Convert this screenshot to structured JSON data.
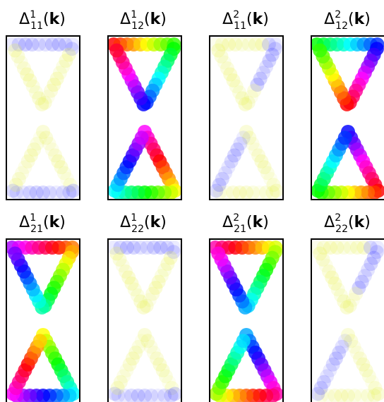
{
  "panels": [
    {
      "id": "d1-11",
      "delta": "Δ",
      "sup": "1",
      "sub": "11",
      "arg_open": "(",
      "arg_k": "k",
      "arg_close": ")",
      "mode": "faint-left"
    },
    {
      "id": "d1-12",
      "delta": "Δ",
      "sup": "1",
      "sub": "12",
      "arg_open": "(",
      "arg_k": "k",
      "arg_close": ")",
      "mode": "rainbow-a"
    },
    {
      "id": "d2-11",
      "delta": "Δ",
      "sup": "2",
      "sub": "11",
      "arg_open": "(",
      "arg_k": "k",
      "arg_close": ")",
      "mode": "faint-right"
    },
    {
      "id": "d2-12",
      "delta": "Δ",
      "sup": "2",
      "sub": "12",
      "arg_open": "(",
      "arg_k": "k",
      "arg_close": ")",
      "mode": "rainbow-b"
    },
    {
      "id": "d1-21",
      "delta": "Δ",
      "sup": "1",
      "sub": "21",
      "arg_open": "(",
      "arg_k": "k",
      "arg_close": ")",
      "mode": "rainbow-c"
    },
    {
      "id": "d1-22",
      "delta": "Δ",
      "sup": "1",
      "sub": "22",
      "arg_open": "(",
      "arg_k": "k",
      "arg_close": ")",
      "mode": "faint-left"
    },
    {
      "id": "d2-21",
      "delta": "Δ",
      "sup": "2",
      "sub": "21",
      "arg_open": "(",
      "arg_k": "k",
      "arg_close": ")",
      "mode": "rainbow-d"
    },
    {
      "id": "d2-22",
      "delta": "Δ",
      "sup": "2",
      "sub": "22",
      "arg_open": "(",
      "arg_k": "k",
      "arg_close": ")",
      "mode": "faint-right"
    }
  ],
  "colors": {
    "frame": "#000000",
    "faint_blue": "#3c3cff",
    "faint_yellow": "#e6f040"
  }
}
